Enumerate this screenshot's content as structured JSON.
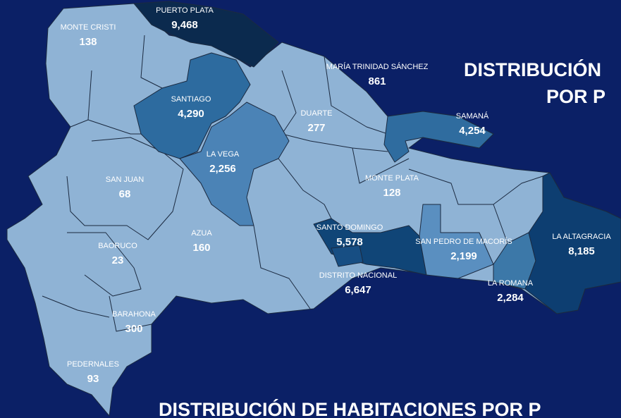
{
  "title_right": [
    "DISTRIBUCIÓN",
    "POR P"
  ],
  "title_bottom": "DISTRIBUCIÓN DE HABITACIONES POR P",
  "regions": [
    {
      "name": "PUERTO PLATA",
      "value": "9,468",
      "color": "#0b2a4e"
    },
    {
      "name": "MONTE CRISTI",
      "value": "138",
      "color": "#8fb3d5"
    },
    {
      "name": "SANTIAGO",
      "value": "4,290",
      "color": "#2d6b9f"
    },
    {
      "name": "MARÍA TRINIDAD SÁNCHEZ",
      "value": "861",
      "color": "#8fb3d5"
    },
    {
      "name": "DUARTE",
      "value": "277",
      "color": "#8fb3d5"
    },
    {
      "name": "SAMANÁ",
      "value": "4,254",
      "color": "#2f6c9f"
    },
    {
      "name": "LA VEGA",
      "value": "2,256",
      "color": "#4b83b6"
    },
    {
      "name": "SAN JUAN",
      "value": "68",
      "color": "#8fb3d5"
    },
    {
      "name": "MONTE PLATA",
      "value": "128",
      "color": "#8fb3d5"
    },
    {
      "name": "AZUA",
      "value": "160",
      "color": "#8fb3d5"
    },
    {
      "name": "SANTO DOMINGO",
      "value": "5,578",
      "color": "#104577"
    },
    {
      "name": "SAN PEDRO DE MACORÍS",
      "value": "2,199",
      "color": "#5a8fc0"
    },
    {
      "name": "LA ALTAGRACIA",
      "value": "8,185",
      "color": "#0d3e71"
    },
    {
      "name": "BAORUCO",
      "value": "23",
      "color": "#8fb3d5"
    },
    {
      "name": "DISTRITO NACIONAL",
      "value": "6,647",
      "color": "#174e83"
    },
    {
      "name": "LA ROMANA",
      "value": "2,284",
      "color": "#3c78a8"
    },
    {
      "name": "BARAHONA",
      "value": "300",
      "color": "#8fb3d5"
    },
    {
      "name": "PEDERNALES",
      "value": "93",
      "color": "#8fb3d5"
    }
  ]
}
